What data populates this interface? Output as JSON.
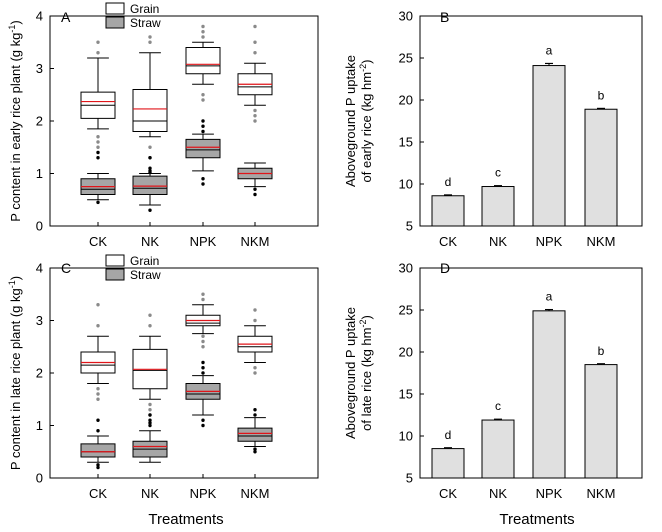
{
  "x_label_bottom": "Treatments",
  "legend": {
    "grain": "Grain",
    "straw": "Straw"
  },
  "chart_data": [
    {
      "id": "A",
      "type": "boxplot",
      "panel_label": "A",
      "ylabel": "P content in early rice plant (g kg",
      "ylabel_sup": "-1",
      "ylabel_end": ")",
      "categories": [
        "CK",
        "NK",
        "NPK",
        "NKM"
      ],
      "ylim": [
        0,
        4
      ],
      "yticks": [
        "0",
        "1",
        "2",
        "3",
        "4"
      ],
      "series": [
        {
          "name": "Grain",
          "boxes": [
            {
              "whislo": 1.85,
              "q1": 2.05,
              "med": 2.3,
              "mean": 2.37,
              "q3": 2.55,
              "whishi": 3.2,
              "outliers": [
                1.5,
                1.6,
                1.7,
                3.3,
                3.5
              ]
            },
            {
              "whislo": 1.7,
              "q1": 1.8,
              "med": 2.0,
              "mean": 2.23,
              "q3": 2.6,
              "whishi": 3.3,
              "outliers": [
                1.3,
                1.5,
                3.5,
                3.6
              ]
            },
            {
              "whislo": 2.7,
              "q1": 2.9,
              "med": 3.05,
              "mean": 3.08,
              "q3": 3.4,
              "whishi": 3.5,
              "outliers": [
                2.4,
                2.5,
                3.6,
                3.7,
                3.8
              ]
            },
            {
              "whislo": 2.3,
              "q1": 2.5,
              "med": 2.65,
              "mean": 2.7,
              "q3": 2.9,
              "whishi": 3.1,
              "outliers": [
                2.0,
                2.1,
                2.2,
                3.3,
                3.5,
                3.8
              ]
            }
          ]
        },
        {
          "name": "Straw",
          "boxes": [
            {
              "whislo": 0.5,
              "q1": 0.6,
              "med": 0.7,
              "mean": 0.75,
              "q3": 0.9,
              "whishi": 1.0,
              "outliers": [
                0.45,
                1.4,
                1.3
              ]
            },
            {
              "whislo": 0.4,
              "q1": 0.6,
              "med": 0.72,
              "mean": 0.76,
              "q3": 0.95,
              "whishi": 1.0,
              "outliers": [
                0.3,
                1.02,
                1.05,
                1.1,
                1.3
              ]
            },
            {
              "whislo": 1.05,
              "q1": 1.3,
              "med": 1.45,
              "mean": 1.5,
              "q3": 1.65,
              "whishi": 1.75,
              "outliers": [
                0.8,
                0.9,
                1.8,
                1.9,
                2.0
              ]
            },
            {
              "whislo": 0.75,
              "q1": 0.9,
              "med": 1.0,
              "mean": 1.0,
              "q3": 1.1,
              "whishi": 1.2,
              "outliers": [
                0.6,
                0.7
              ]
            }
          ]
        }
      ]
    },
    {
      "id": "B",
      "type": "bar",
      "panel_label": "B",
      "ylabel_line1": "Aboveground P uptake",
      "ylabel_line2": "of early rice (kg hm",
      "ylabel_sup": "-2",
      "ylabel_end": ")",
      "categories": [
        "CK",
        "NK",
        "NPK",
        "NKM"
      ],
      "values": [
        8.6,
        9.7,
        24.1,
        18.9
      ],
      "errors": [
        0.1,
        0.1,
        0.25,
        0.1
      ],
      "letters": [
        "d",
        "c",
        "a",
        "b"
      ],
      "ylim": [
        5,
        30
      ],
      "yticks": [
        "5",
        "10",
        "15",
        "20",
        "25",
        "30"
      ]
    },
    {
      "id": "C",
      "type": "boxplot",
      "panel_label": "C",
      "ylabel": "P content in late rice plant (g kg",
      "ylabel_sup": "-1",
      "ylabel_end": ")",
      "categories": [
        "CK",
        "NK",
        "NPK",
        "NKM"
      ],
      "ylim": [
        0,
        4
      ],
      "yticks": [
        "0",
        "1",
        "2",
        "3",
        "4"
      ],
      "series": [
        {
          "name": "Grain",
          "boxes": [
            {
              "whislo": 1.8,
              "q1": 2.0,
              "med": 2.15,
              "mean": 2.2,
              "q3": 2.4,
              "whishi": 2.7,
              "outliers": [
                1.5,
                1.6,
                1.7,
                2.9,
                3.3
              ]
            },
            {
              "whislo": 1.5,
              "q1": 1.7,
              "med": 2.05,
              "mean": 2.07,
              "q3": 2.45,
              "whishi": 2.7,
              "outliers": [
                1.2,
                1.3,
                1.4,
                2.9,
                3.1
              ]
            },
            {
              "whislo": 2.75,
              "q1": 2.9,
              "med": 2.95,
              "mean": 3.0,
              "q3": 3.1,
              "whishi": 3.3,
              "outliers": [
                2.5,
                2.6,
                2.7,
                3.4,
                3.5
              ]
            },
            {
              "whislo": 2.2,
              "q1": 2.4,
              "med": 2.5,
              "mean": 2.55,
              "q3": 2.7,
              "whishi": 2.9,
              "outliers": [
                2.0,
                2.1,
                3.0,
                3.2
              ]
            }
          ]
        },
        {
          "name": "Straw",
          "boxes": [
            {
              "whislo": 0.3,
              "q1": 0.4,
              "med": 0.5,
              "mean": 0.5,
              "q3": 0.65,
              "whishi": 0.8,
              "outliers": [
                0.2,
                0.25,
                0.9,
                1.1
              ]
            },
            {
              "whislo": 0.3,
              "q1": 0.4,
              "med": 0.55,
              "mean": 0.6,
              "q3": 0.7,
              "whishi": 0.9,
              "outliers": [
                1.0,
                1.05,
                1.1,
                1.2
              ]
            },
            {
              "whislo": 1.2,
              "q1": 1.5,
              "med": 1.6,
              "mean": 1.65,
              "q3": 1.8,
              "whishi": 1.95,
              "outliers": [
                1.0,
                1.1,
                2.0,
                2.1,
                2.2
              ]
            },
            {
              "whislo": 0.6,
              "q1": 0.7,
              "med": 0.8,
              "mean": 0.85,
              "q3": 0.95,
              "whishi": 1.15,
              "outliers": [
                0.5,
                0.55,
                1.2,
                1.3
              ]
            }
          ]
        }
      ]
    },
    {
      "id": "D",
      "type": "bar",
      "panel_label": "D",
      "ylabel_line1": "Aboveground P uptake",
      "ylabel_line2": "of late rice (kg hm",
      "ylabel_sup": "-2",
      "ylabel_end": ")",
      "categories": [
        "CK",
        "NK",
        "NPK",
        "NKM"
      ],
      "values": [
        8.5,
        11.9,
        24.9,
        18.5
      ],
      "errors": [
        0.1,
        0.1,
        0.15,
        0.1
      ],
      "letters": [
        "d",
        "c",
        "a",
        "b"
      ],
      "ylim": [
        5,
        30
      ],
      "yticks": [
        "5",
        "10",
        "15",
        "20",
        "25",
        "30"
      ]
    }
  ],
  "colors": {
    "grain_fill": "#ffffff",
    "straw_fill": "#a6a6a6",
    "bar_fill": "#e0e0e0",
    "mean_line": "#e0151a",
    "outlier_grain": "#8a8a8a",
    "outlier_straw": "#000000"
  }
}
